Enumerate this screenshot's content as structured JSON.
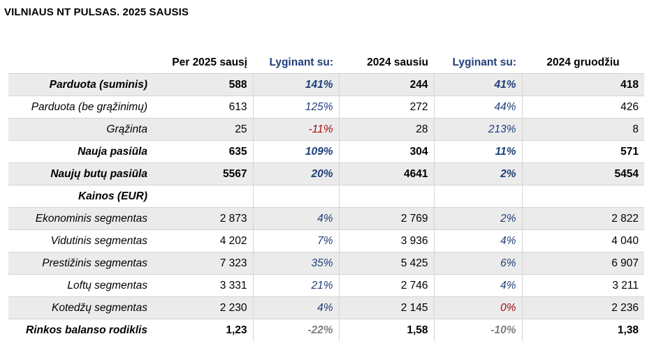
{
  "title": "VILNIAUS NT PULSAS. 2025 SAUSIS",
  "columns": [
    "Per 2025 sausį",
    "Lyginant su:",
    "2024 sausiu",
    "Lyginant su:",
    "2024 gruodžiu"
  ],
  "rows": [
    {
      "label": "Parduota (suminis)",
      "v1": "588",
      "c1": "141%",
      "v2": "244",
      "c2": "41%",
      "v3": "418"
    },
    {
      "label": "Parduota (be grąžinimų)",
      "v1": "613",
      "c1": "125%",
      "v2": "272",
      "c2": "44%",
      "v3": "426"
    },
    {
      "label": "Grąžinta",
      "v1": "25",
      "c1": "-11%",
      "v2": "28",
      "c2": "213%",
      "v3": "8"
    },
    {
      "label": "Nauja pasiūla",
      "v1": "635",
      "c1": "109%",
      "v2": "304",
      "c2": "11%",
      "v3": "571"
    },
    {
      "label": "Naujų butų pasiūla",
      "v1": "5567",
      "c1": "20%",
      "v2": "4641",
      "c2": "2%",
      "v3": "5454"
    },
    {
      "label": "Kainos (EUR)",
      "v1": "",
      "c1": "",
      "v2": "",
      "c2": "",
      "v3": ""
    },
    {
      "label": "Ekonominis segmentas",
      "v1": "2 873",
      "c1": "4%",
      "v2": "2 769",
      "c2": "2%",
      "v3": "2 822"
    },
    {
      "label": "Vidutinis segmentas",
      "v1": "4 202",
      "c1": "7%",
      "v2": "3 936",
      "c2": "4%",
      "v3": "4 040"
    },
    {
      "label": "Prestižinis segmentas",
      "v1": "7 323",
      "c1": "35%",
      "v2": "5 425",
      "c2": "6%",
      "v3": "6 907"
    },
    {
      "label": "Loftų segmentas",
      "v1": "3 331",
      "c1": "21%",
      "v2": "2 746",
      "c2": "4%",
      "v3": "3 211"
    },
    {
      "label": "Kotedžų segmentas",
      "v1": "2 230",
      "c1": "4%",
      "v2": "2 145",
      "c2": "0%",
      "v3": "2 236"
    },
    {
      "label": "Rinkos balanso rodiklis",
      "v1": "1,23",
      "c1": "-22%",
      "v2": "1,58",
      "c2": "-10%",
      "v3": "1,38"
    }
  ],
  "colors": {
    "comparison_blue": "#1f3f7a",
    "negative_red": "#a40f0f",
    "muted_gray": "#7f7f7f",
    "row_shade": "#ebebeb"
  }
}
